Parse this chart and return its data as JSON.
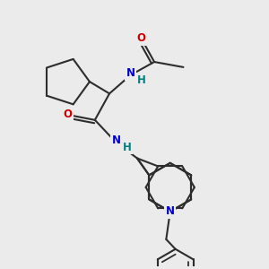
{
  "bg_color": "#ebebeb",
  "bond_color": "#2d2d2d",
  "bond_width": 1.5,
  "o_color": "#cc0000",
  "n_color": "#0000cc",
  "nh_color": "#008080",
  "figsize": [
    3.0,
    3.0
  ],
  "dpi": 100,
  "xlim": [
    0,
    10
  ],
  "ylim": [
    0,
    10
  ]
}
